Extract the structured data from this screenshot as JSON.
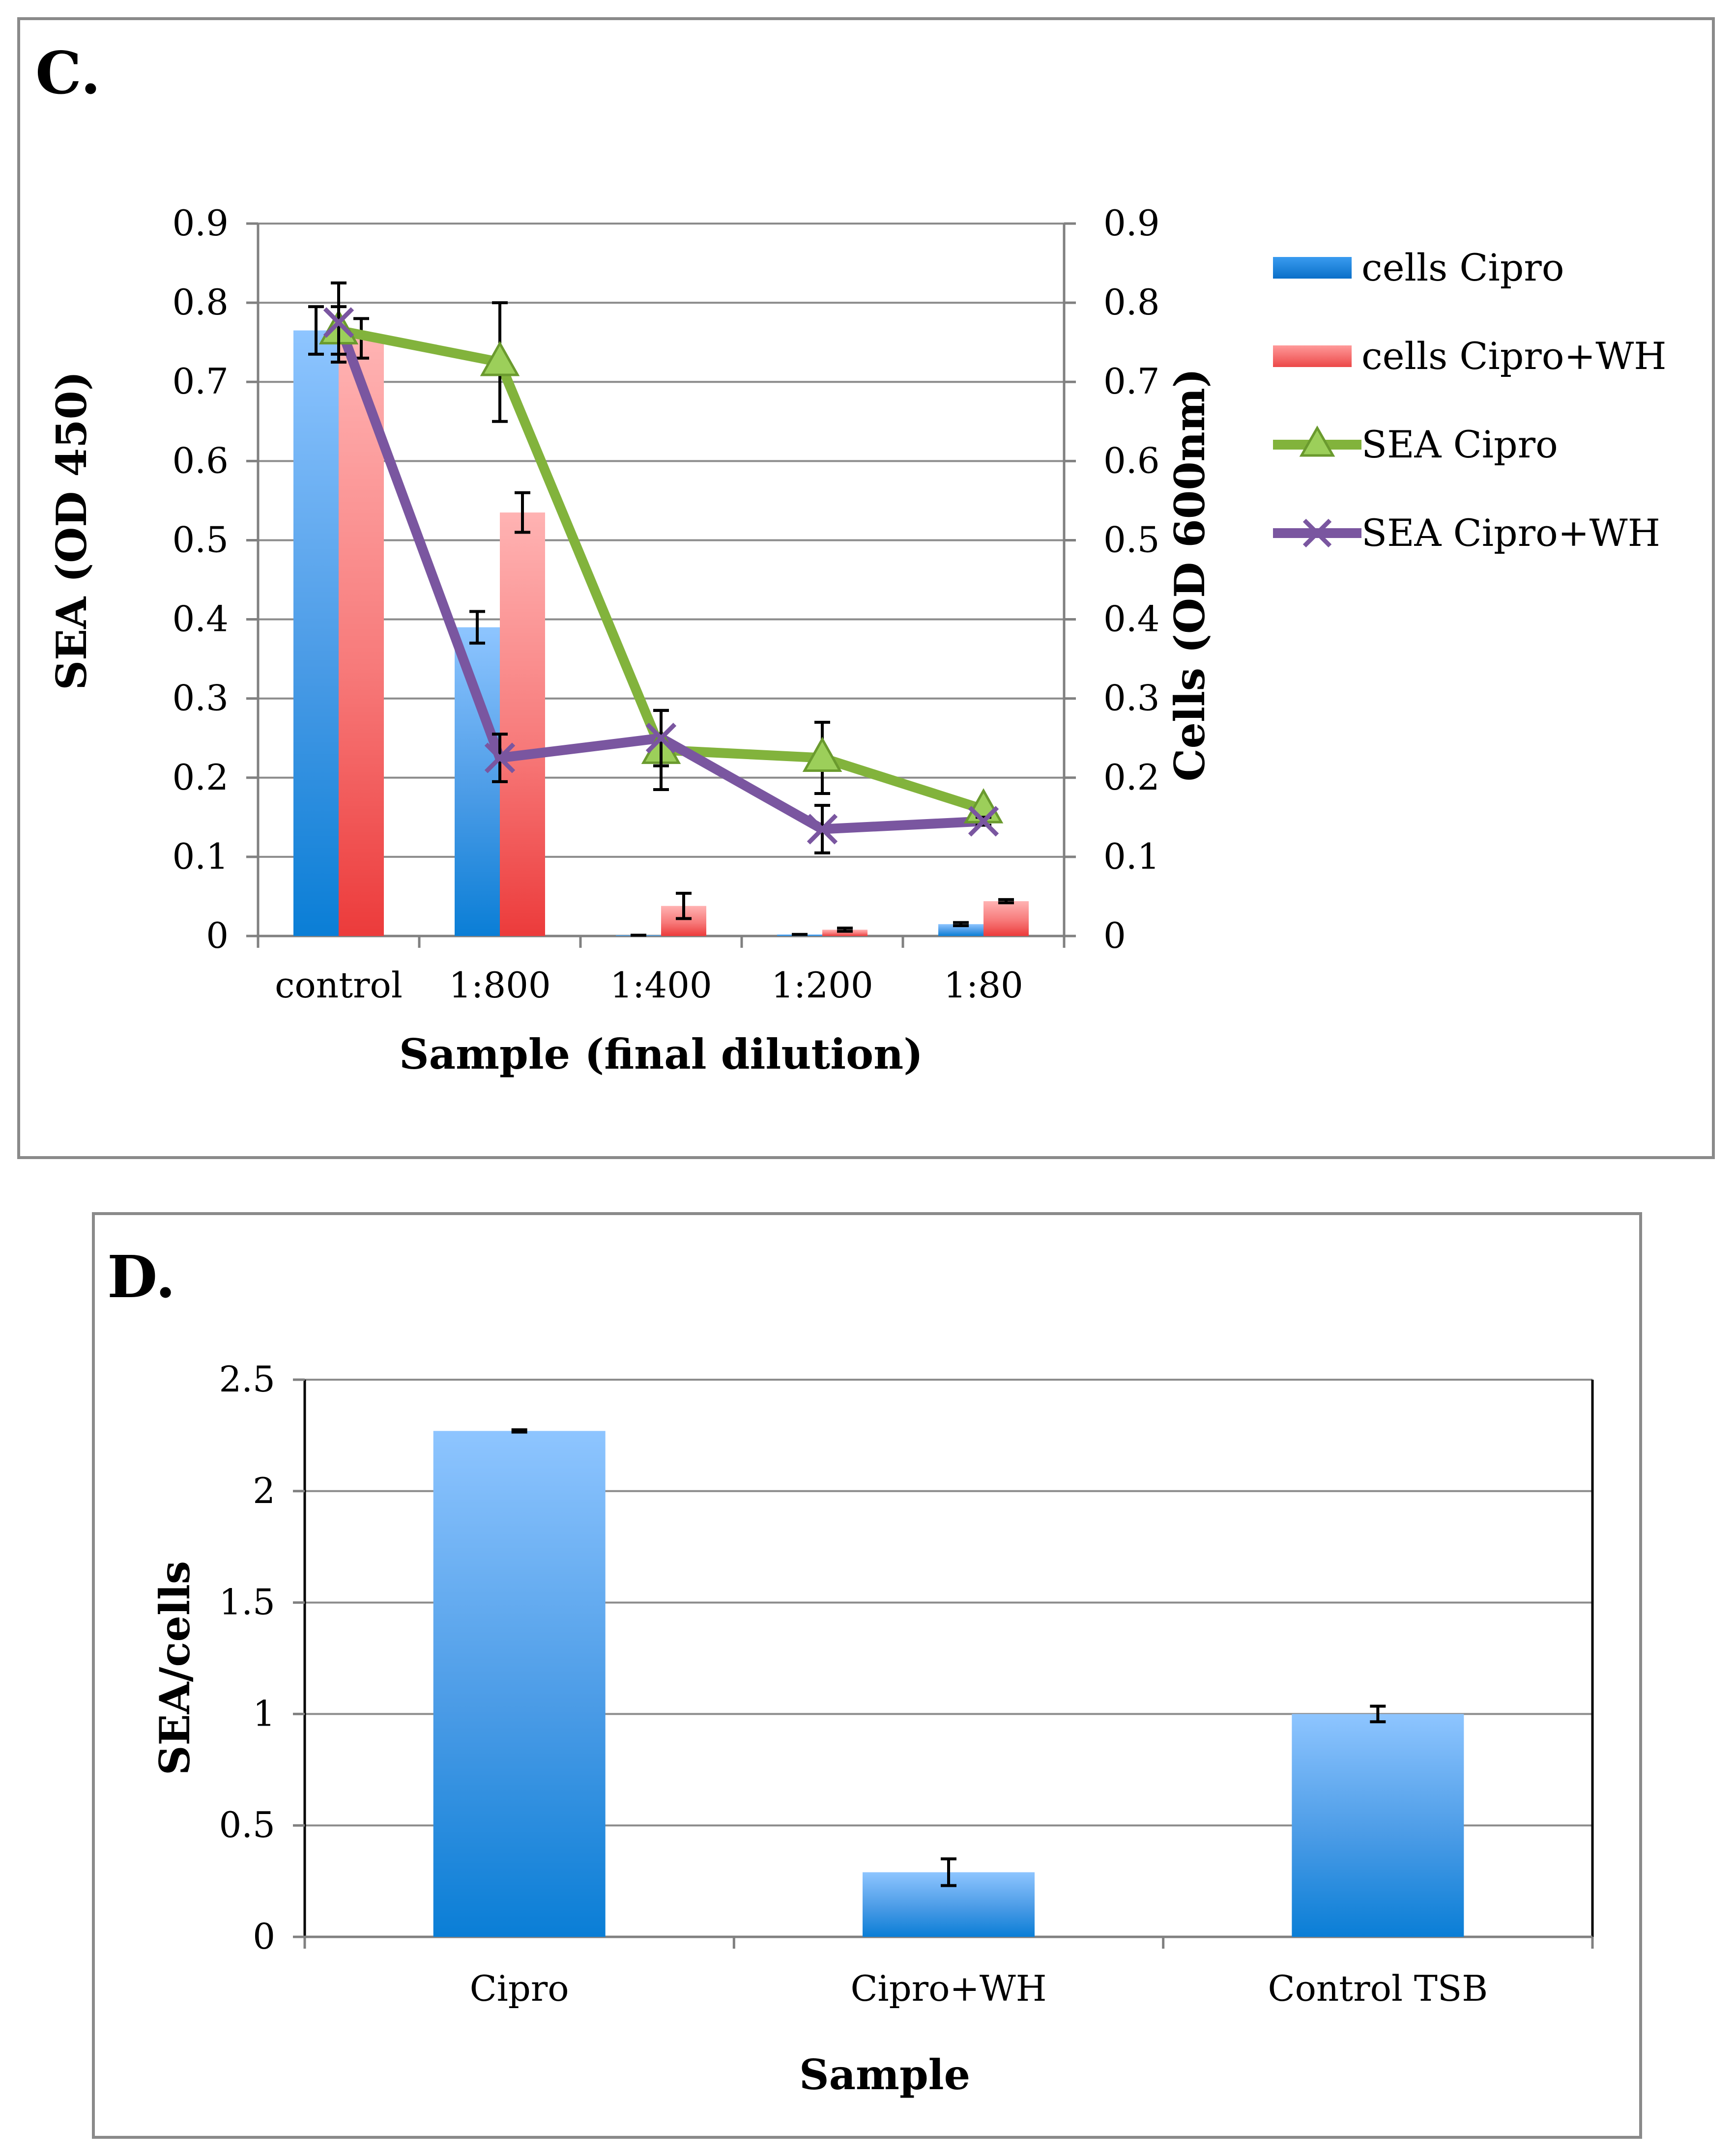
{
  "chart_data": [
    {
      "panel_label": "C.",
      "type": "bar+line",
      "title": "",
      "categories": [
        "control",
        "1:800",
        "1:400",
        "1:200",
        "1:80"
      ],
      "xlabel": "Sample (final dilution)",
      "ylabel": "SEA (OD 450)",
      "y2label": "Cells (OD 600nm)",
      "ylim": [
        0,
        0.9
      ],
      "y2lim": [
        0,
        0.9
      ],
      "yticks": [
        "0",
        "0.1",
        "0.2",
        "0.3",
        "0.4",
        "0.5",
        "0.6",
        "0.7",
        "0.8",
        "0.9"
      ],
      "y2ticks": [
        "0",
        "0.1",
        "0.2",
        "0.3",
        "0.4",
        "0.5",
        "0.6",
        "0.7",
        "0.8",
        "0.9"
      ],
      "grid": true,
      "legend_position": "right",
      "series": [
        {
          "name": "cells Cipro",
          "kind": "bar",
          "axis": "y2",
          "color": "#3a8ee0",
          "values": [
            0.765,
            0.39,
            0.001,
            0.002,
            0.015
          ],
          "errors": [
            0.03,
            0.02,
            0.0,
            0.0,
            0.002
          ]
        },
        {
          "name": "cells Cipro+WH",
          "kind": "bar",
          "axis": "y2",
          "color": "#f06060",
          "values": [
            0.755,
            0.535,
            0.038,
            0.008,
            0.044
          ],
          "errors": [
            0.025,
            0.025,
            0.016,
            0.002,
            0.002
          ]
        },
        {
          "name": "SEA Cipro",
          "kind": "line",
          "marker": "triangle",
          "axis": "y",
          "color": "#82b33c",
          "values": [
            0.765,
            0.725,
            0.235,
            0.225,
            0.16
          ],
          "errors": [
            0.03,
            0.075,
            0.05,
            0.045,
            0.005
          ]
        },
        {
          "name": "SEA Cipro+WH",
          "kind": "line",
          "marker": "x",
          "axis": "y",
          "color": "#7a56a0",
          "values": [
            0.775,
            0.225,
            0.25,
            0.135,
            0.145
          ],
          "errors": [
            0.05,
            0.03,
            0.035,
            0.03,
            0.005
          ]
        }
      ]
    },
    {
      "panel_label": "D.",
      "type": "bar",
      "title": "",
      "categories": [
        "Cipro",
        "Cipro+WH",
        "Control TSB"
      ],
      "xlabel": "Sample",
      "ylabel": "SEA/cells",
      "ylim": [
        0,
        2.5
      ],
      "yticks": [
        "0",
        "0.5",
        "1",
        "1.5",
        "2",
        "2.5"
      ],
      "grid": true,
      "series": [
        {
          "name": "SEA/cells",
          "kind": "bar",
          "color": "#3a8ee0",
          "values": [
            2.27,
            0.29,
            1.0
          ],
          "errors": [
            0.005,
            0.06,
            0.035
          ]
        }
      ]
    }
  ]
}
